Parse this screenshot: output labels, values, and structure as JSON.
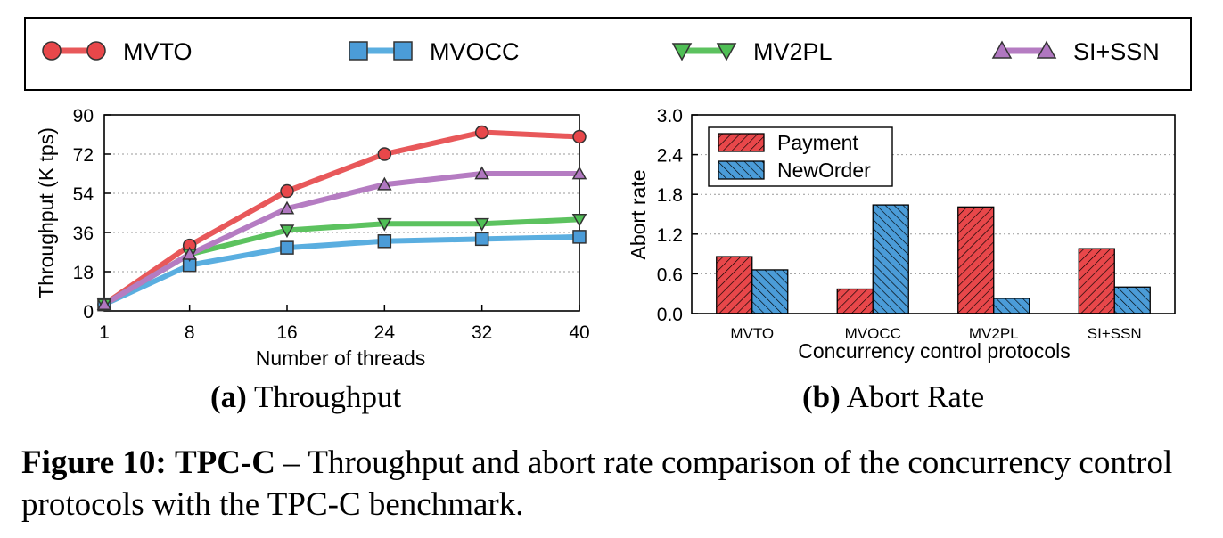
{
  "legend": {
    "entries": [
      {
        "name": "MVTO",
        "color": "#e8474a",
        "line_color": "#e8585a",
        "marker": "circle"
      },
      {
        "name": "MVOCC",
        "color": "#4b9cd8",
        "line_color": "#5aaee0",
        "marker": "square"
      },
      {
        "name": "MV2PL",
        "color": "#4fbf55",
        "line_color": "#5cc25f",
        "marker": "triangle-down"
      },
      {
        "name": "SI+SSN",
        "color": "#b077c0",
        "line_color": "#b57cc2",
        "marker": "triangle-up"
      }
    ]
  },
  "chart_data": [
    {
      "type": "line",
      "title": "Throughput",
      "xlabel": "Number of threads",
      "ylabel": "Throughput (K tps)",
      "x": [
        1,
        8,
        16,
        24,
        32,
        40
      ],
      "xlim": [
        1,
        40
      ],
      "ylim": [
        0,
        90
      ],
      "yticks": [
        0,
        18,
        36,
        54,
        72,
        90
      ],
      "series": [
        {
          "name": "MVTO",
          "values": [
            3,
            30,
            55,
            72,
            82,
            80
          ]
        },
        {
          "name": "MVOCC",
          "values": [
            3,
            21,
            29,
            32,
            33,
            34
          ]
        },
        {
          "name": "MV2PL",
          "values": [
            3,
            26,
            37,
            40,
            40,
            42
          ]
        },
        {
          "name": "SI+SSN",
          "values": [
            3,
            26,
            47,
            58,
            63,
            63
          ]
        }
      ]
    },
    {
      "type": "bar",
      "title": "Abort Rate",
      "xlabel": "Concurrency control protocols",
      "ylabel": "Abort rate",
      "categories": [
        "MVTO",
        "MVOCC",
        "MV2PL",
        "SI+SSN"
      ],
      "ylim": [
        0,
        3.0
      ],
      "yticks": [
        "0.0",
        "0.6",
        "1.2",
        "1.8",
        "2.4",
        "3.0"
      ],
      "legend_position": "top-left",
      "series": [
        {
          "name": "Payment",
          "values": [
            0.86,
            0.37,
            1.61,
            0.98
          ],
          "color": "#e8474a"
        },
        {
          "name": "NewOrder",
          "values": [
            0.66,
            1.64,
            0.23,
            0.4
          ],
          "color": "#4b9cd8"
        }
      ]
    }
  ],
  "subcaptions": {
    "a": {
      "label": "(a)",
      "text": "Throughput"
    },
    "b": {
      "label": "(b)",
      "text": "Abort Rate"
    }
  },
  "caption": {
    "label": "Figure 10:",
    "title": "TPC-C",
    "text": "– Throughput and abort rate comparison of the concurrency control protocols with the TPC-C benchmark."
  }
}
